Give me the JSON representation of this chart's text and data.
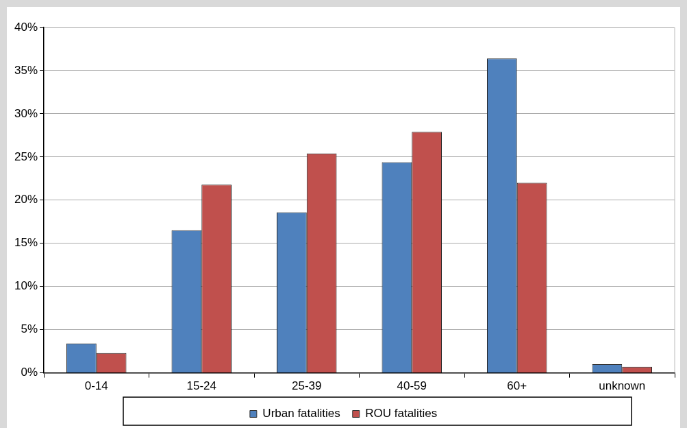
{
  "chart_data": {
    "type": "bar",
    "categories": [
      "0-14",
      "15-24",
      "25-39",
      "40-59",
      "60+",
      "unknown"
    ],
    "series": [
      {
        "name": "Urban fatalities",
        "color": "#4f81bd",
        "values": [
          3.4,
          16.5,
          18.6,
          24.4,
          36.4,
          1.0
        ]
      },
      {
        "name": "ROU fatalities",
        "color": "#c0504d",
        "values": [
          2.3,
          21.8,
          25.4,
          27.9,
          22.0,
          0.7
        ]
      }
    ],
    "ylim": [
      0,
      40
    ],
    "yticks": [
      {
        "value": 0,
        "label": "0%"
      },
      {
        "value": 5,
        "label": "5%"
      },
      {
        "value": 10,
        "label": "10%"
      },
      {
        "value": 15,
        "label": "15%"
      },
      {
        "value": 20,
        "label": "20%"
      },
      {
        "value": 25,
        "label": "25%"
      },
      {
        "value": 30,
        "label": "30%"
      },
      {
        "value": 35,
        "label": "35%"
      },
      {
        "value": 40,
        "label": "40%"
      }
    ],
    "grid": "y",
    "legend": "bottom"
  }
}
